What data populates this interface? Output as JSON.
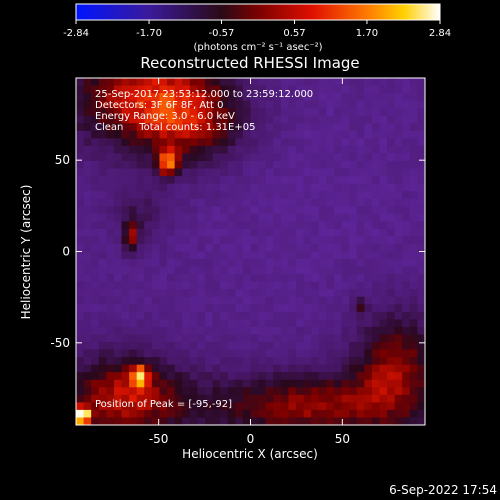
{
  "colorbar": {
    "tick_labels": [
      "-2.84",
      "-1.70",
      "-0.57",
      "0.57",
      "1.70",
      "2.84"
    ],
    "tick_values": [
      -2.84,
      -1.7,
      -0.57,
      0.57,
      1.7,
      2.84
    ],
    "range": [
      -2.84,
      2.84
    ],
    "unit_label": "(photons cm⁻² s⁻¹ asec⁻²)",
    "colormap_stops": [
      "#0014ff",
      "#3a1a9a",
      "#2a0a16",
      "#7a0000",
      "#e01000",
      "#ff7a00",
      "#ffd000",
      "#ffffff"
    ]
  },
  "plot": {
    "title": "Reconstructed RHESSI Image",
    "info_lines": [
      "25-Sep-2017 23:53:12.000 to 23:59:12.000",
      "Detectors: 3F 6F 8F, Att 0",
      "Energy Range: 3.0 - 6.0 keV",
      "Clean     Total counts: 1.31E+05"
    ],
    "peak_text": "Position of Peak = [-95,-92]",
    "footer_date": "6-Sep-2022 17:54"
  },
  "chart_data": {
    "type": "heatmap",
    "title": "Reconstructed RHESSI Image",
    "xlabel": "Heliocentric X (arcsec)",
    "ylabel": "Heliocentric Y (arcsec)",
    "xlim": [
      -95,
      95
    ],
    "ylim": [
      -95,
      95
    ],
    "x_ticks": [
      -50,
      0,
      50
    ],
    "y_ticks": [
      50,
      0,
      -50
    ],
    "x_tick_labels": [
      "-50",
      "0",
      "50"
    ],
    "y_tick_labels": [
      "50",
      "0",
      "-50"
    ],
    "peak": {
      "x": -95,
      "y": -92
    },
    "bright_regions": [
      {
        "x": -45,
        "y": 48,
        "level": "high"
      },
      {
        "x": -65,
        "y": 10,
        "level": "medium"
      },
      {
        "x": -60,
        "y": -68,
        "level": "high"
      },
      {
        "x": 60,
        "y": -30,
        "level": "medium"
      },
      {
        "x": -95,
        "y": -92,
        "level": "peak"
      }
    ]
  }
}
